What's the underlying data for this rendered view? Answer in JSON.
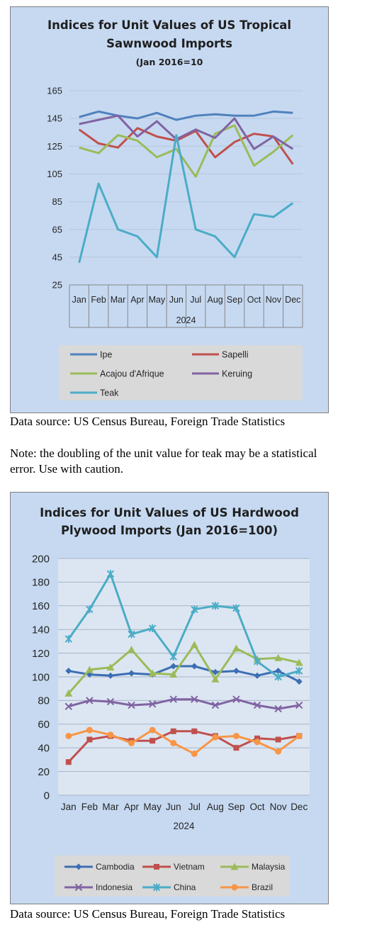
{
  "charts": [
    {
      "title_line1": "Indices for Unit Values of US Tropical",
      "title_line2": "Sawnwood Imports",
      "subtitle": "(Jan 2016=10",
      "xlabel": "2024"
    },
    {
      "title_line1": "Indices for Unit Values of US Hardwood",
      "title_line2": "Plywood Imports (Jan 2016=100)",
      "xlabel": "2024"
    }
  ],
  "source1": "Data source: US Census Bureau, Foreign Trade Statistics",
  "note_line1": "Note: the doubling of the unit value for teak may be a statistical",
  "note_line2": "error.  Use with caution.",
  "source2": "Data source: US Census Bureau, Foreign Trade Statistics",
  "chart_data": [
    {
      "type": "line",
      "title": "Indices for Unit Values of US Tropical Sawnwood Imports (Jan 2016=10",
      "xlabel": "2024",
      "ylabel": "",
      "ylim": [
        25,
        165
      ],
      "yticks": [
        25,
        45,
        65,
        85,
        105,
        125,
        145,
        165
      ],
      "grid": true,
      "legend_position": "bottom",
      "categories": [
        "Jan",
        "Feb",
        "Mar",
        "Apr",
        "May",
        "Jun",
        "Jul",
        "Aug",
        "Sep",
        "Oct",
        "Nov",
        "Dec"
      ],
      "series": [
        {
          "name": "Ipe",
          "color": "#4f81bd",
          "marker": "none",
          "values": [
            146,
            150,
            147,
            145,
            149,
            144,
            147,
            148,
            147,
            147,
            150,
            149
          ]
        },
        {
          "name": "Sapelli",
          "color": "#c0504d",
          "marker": "none",
          "values": [
            137,
            127,
            124,
            138,
            132,
            129,
            136,
            117,
            128,
            134,
            132,
            112
          ]
        },
        {
          "name": "Acajou d'Afrique",
          "color": "#9bbb59",
          "marker": "none",
          "values": [
            124,
            120,
            133,
            129,
            117,
            123,
            103,
            134,
            140,
            111,
            121,
            133
          ]
        },
        {
          "name": "Keruing",
          "color": "#8064a2",
          "marker": "none",
          "values": [
            141,
            144,
            147,
            132,
            143,
            130,
            137,
            131,
            145,
            123,
            132,
            123
          ]
        },
        {
          "name": "Teak",
          "color": "#4bacc6",
          "marker": "none",
          "values": [
            41,
            98,
            65,
            60,
            45,
            133,
            65,
            60,
            45,
            76,
            74,
            84
          ]
        }
      ]
    },
    {
      "type": "line",
      "title": "Indices for Unit Values of US Hardwood Plywood Imports (Jan 2016=100)",
      "xlabel": "2024",
      "ylabel": "",
      "ylim": [
        0,
        200
      ],
      "yticks": [
        0,
        20,
        40,
        60,
        80,
        100,
        120,
        140,
        160,
        180,
        200
      ],
      "grid": true,
      "legend_position": "bottom",
      "categories": [
        "Jan",
        "Feb",
        "Mar",
        "Apr",
        "May",
        "Jun",
        "Jul",
        "Aug",
        "Sep",
        "Oct",
        "Nov",
        "Dec"
      ],
      "series": [
        {
          "name": "Cambodia",
          "color": "#3c6eb4",
          "marker": "diamond",
          "values": [
            105,
            102,
            101,
            103,
            102,
            109,
            109,
            104,
            105,
            101,
            105,
            96
          ]
        },
        {
          "name": "Vietnam",
          "color": "#c0504d",
          "marker": "square",
          "values": [
            28,
            47,
            50,
            46,
            46,
            54,
            54,
            50,
            40,
            48,
            47,
            50
          ]
        },
        {
          "name": "Malaysia",
          "color": "#9bbb59",
          "marker": "triangle",
          "values": [
            86,
            106,
            108,
            123,
            103,
            102,
            127,
            98,
            124,
            115,
            116,
            112
          ]
        },
        {
          "name": "Indonesia",
          "color": "#8064a2",
          "marker": "x",
          "values": [
            75,
            80,
            79,
            76,
            77,
            81,
            81,
            76,
            81,
            76,
            73,
            76
          ]
        },
        {
          "name": "China",
          "color": "#4bacc6",
          "marker": "star",
          "values": [
            132,
            157,
            187,
            136,
            141,
            117,
            157,
            160,
            158,
            113,
            100,
            105
          ]
        },
        {
          "name": "Brazil",
          "color": "#f79646",
          "marker": "circle",
          "values": [
            50,
            55,
            51,
            44,
            55,
            44,
            35,
            49,
            50,
            45,
            37,
            50
          ]
        }
      ]
    }
  ]
}
